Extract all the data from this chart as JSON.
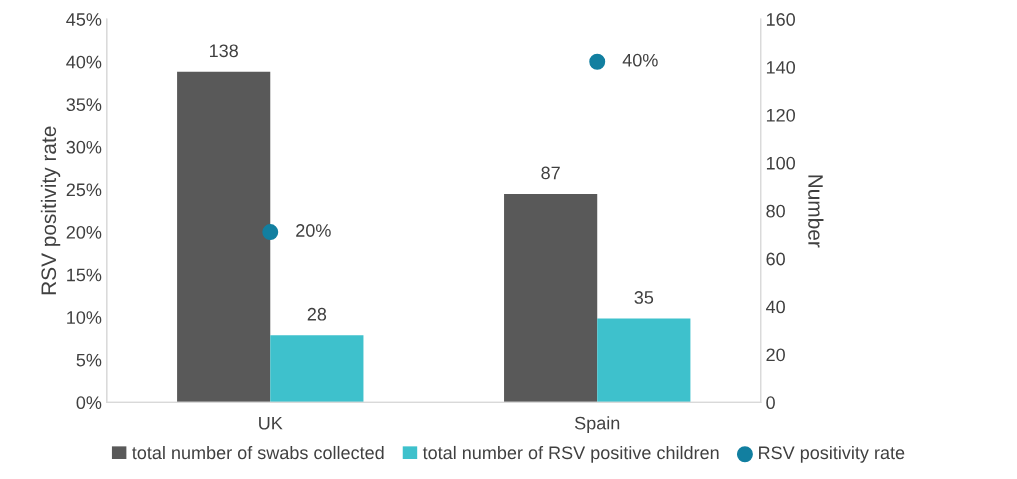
{
  "chart_data": {
    "type": "bar",
    "categories": [
      "UK",
      "Spain"
    ],
    "ylabel": "RSV positivity rate",
    "y2label": "Number",
    "ylim": [
      0,
      45
    ],
    "yticks": [
      {
        "value": 0,
        "label": "0%"
      },
      {
        "value": 5,
        "label": "5%"
      },
      {
        "value": 10,
        "label": "10%"
      },
      {
        "value": 15,
        "label": "15%"
      },
      {
        "value": 20,
        "label": "20%"
      },
      {
        "value": 25,
        "label": "25%"
      },
      {
        "value": 30,
        "label": "30%"
      },
      {
        "value": 35,
        "label": "35%"
      },
      {
        "value": 40,
        "label": "40%"
      },
      {
        "value": 45,
        "label": "45%"
      }
    ],
    "y2lim": [
      0,
      160
    ],
    "y2ticks": [
      0,
      20,
      40,
      60,
      80,
      100,
      120,
      140,
      160
    ],
    "series": [
      {
        "name": "total number of swabs collected",
        "axis": "y2",
        "color": "#595959",
        "values": [
          138,
          87
        ],
        "value_labels": [
          "138",
          "87"
        ]
      },
      {
        "name": "total number of RSV positive children",
        "axis": "y2",
        "color": "#3ec1cc",
        "values": [
          28,
          35
        ],
        "value_labels": [
          "28",
          "35"
        ]
      },
      {
        "name": "RSV positivity rate",
        "type": "scatter",
        "axis": "y",
        "color": "#127fa0",
        "marker": "circle",
        "values": [
          20,
          40
        ],
        "value_labels": [
          "20%",
          "40%"
        ]
      }
    ],
    "legend": "bottom",
    "grid": false
  }
}
